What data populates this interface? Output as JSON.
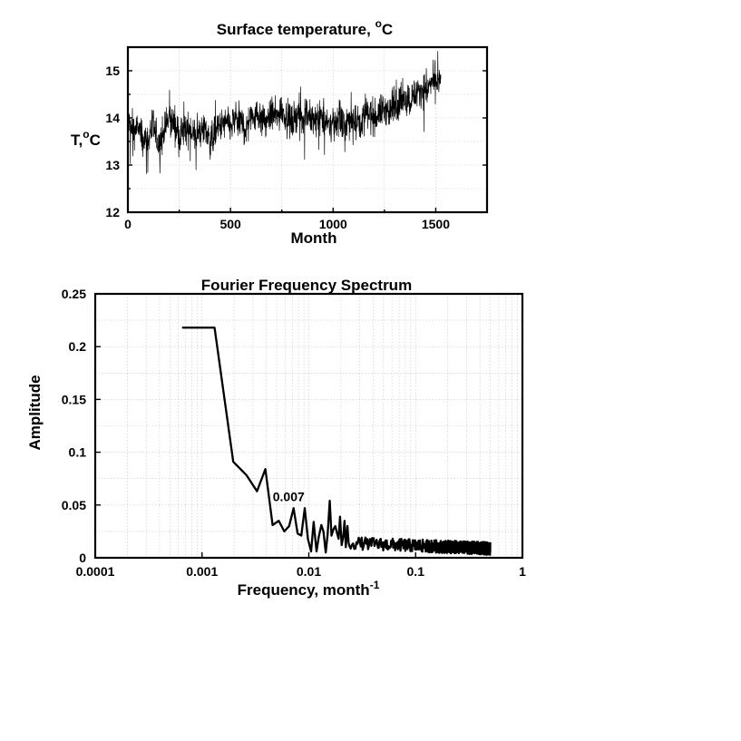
{
  "figure": {
    "temperature_panel": {
      "title": "Surface temperature, ",
      "title_degree": "o",
      "title_unit": "C",
      "ylabel_t": "T,",
      "ylabel_degree": "o",
      "ylabel_unit": "C",
      "xlabel": "Month"
    },
    "spectrum_panel": {
      "title": "Fourier Frequency Spectrum",
      "ylabel": "Amplitude",
      "xlabel": "Frequency, month",
      "xlabel_sup": "-1"
    }
  },
  "chart_data": [
    {
      "type": "line",
      "title": "Surface temperature, °C",
      "xlabel": "Month",
      "ylabel": "T,°C",
      "xlim": [
        0,
        1750
      ],
      "ylim": [
        12,
        15.5
      ],
      "xticks": [
        "0",
        "500",
        "1000",
        "1500"
      ],
      "yticks": [
        "12",
        "13",
        "14",
        "15"
      ],
      "grid": true,
      "series_color": "#000000",
      "x": [
        0,
        25,
        50,
        75,
        100,
        125,
        150,
        175,
        200,
        225,
        250,
        275,
        300,
        325,
        350,
        375,
        400,
        425,
        450,
        475,
        500,
        525,
        550,
        575,
        600,
        625,
        650,
        675,
        700,
        725,
        750,
        775,
        800,
        825,
        850,
        875,
        900,
        925,
        950,
        975,
        1000,
        1025,
        1050,
        1075,
        1100,
        1125,
        1150,
        1175,
        1200,
        1225,
        1250,
        1275,
        1300,
        1325,
        1350,
        1375,
        1400,
        1425,
        1450,
        1475,
        1500,
        1525
      ],
      "y": [
        13.9,
        13.7,
        13.8,
        13.5,
        13.6,
        13.8,
        13.4,
        13.7,
        14.0,
        13.9,
        13.6,
        13.7,
        13.8,
        13.6,
        13.7,
        13.8,
        13.5,
        13.7,
        13.8,
        13.9,
        13.8,
        14.0,
        13.9,
        13.8,
        14.0,
        14.1,
        14.0,
        13.9,
        14.1,
        14.0,
        14.2,
        14.0,
        13.9,
        14.1,
        14.0,
        14.1,
        13.9,
        14.0,
        14.0,
        13.8,
        13.9,
        14.0,
        13.8,
        13.9,
        14.0,
        13.9,
        14.0,
        14.1,
        14.0,
        14.1,
        14.2,
        14.1,
        14.3,
        14.3,
        14.4,
        14.4,
        14.5,
        14.6,
        14.6,
        14.7,
        14.8,
        14.7
      ],
      "noise_amplitude": 0.28
    },
    {
      "type": "line",
      "title": "Fourier Frequency Spectrum",
      "xlabel": "Frequency, month-1",
      "ylabel": "Amplitude",
      "xscale": "log",
      "xlim": [
        0.0001,
        1
      ],
      "ylim": [
        0,
        0.25
      ],
      "xticks": [
        "0.0001",
        "0.001",
        "0.01",
        "0.1",
        "1"
      ],
      "yticks": [
        "0",
        "0.05",
        "0.1",
        "0.15",
        "0.2",
        "0.25"
      ],
      "grid": true,
      "annotations": [
        {
          "text": "0.007",
          "x": 0.007,
          "y": 0.047
        }
      ],
      "x": [
        0.00065,
        0.00131,
        0.00196,
        0.00262,
        0.00327,
        0.00392,
        0.00458,
        0.00523,
        0.00589,
        0.00654,
        0.0072,
        0.00785,
        0.0085,
        0.00916,
        0.0098,
        0.0105,
        0.0111,
        0.0118,
        0.0124,
        0.0131,
        0.0137,
        0.0144,
        0.015,
        0.0157,
        0.0163,
        0.017,
        0.0177,
        0.0183,
        0.019,
        0.0196,
        0.0203,
        0.021,
        0.0216,
        0.0222,
        0.023,
        0.0236
      ],
      "y": [
        0.218,
        0.218,
        0.091,
        0.078,
        0.063,
        0.084,
        0.031,
        0.035,
        0.025,
        0.03,
        0.047,
        0.023,
        0.021,
        0.047,
        0.018,
        0.006,
        0.034,
        0.006,
        0.02,
        0.031,
        0.025,
        0.005,
        0.022,
        0.054,
        0.021,
        0.027,
        0.03,
        0.024,
        0.018,
        0.039,
        0.012,
        0.02,
        0.035,
        0.01,
        0.03,
        0.014
      ],
      "tail_range": [
        0.024,
        0.5
      ],
      "tail_mean": 0.008,
      "tail_noise": 0.006
    }
  ]
}
